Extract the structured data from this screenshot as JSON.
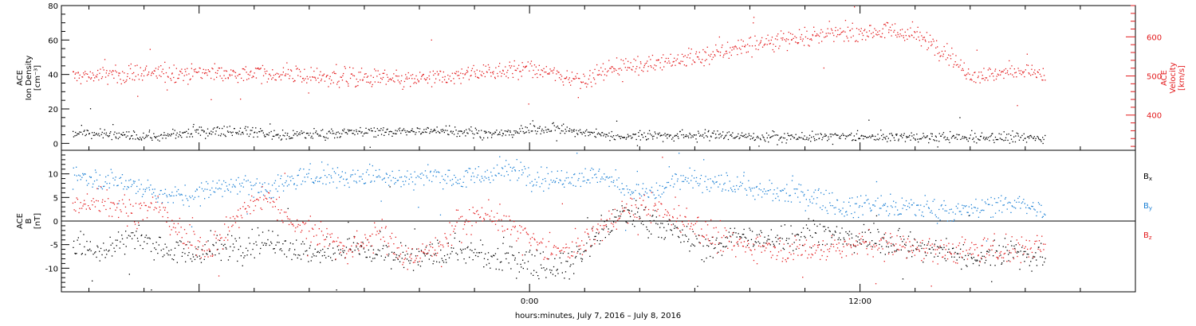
{
  "chart_data": [
    {
      "type": "scatter",
      "panel": "top",
      "left_axis_label": [
        "ACE",
        "Ion Density",
        "[cm⁻³]"
      ],
      "right_axis_label": [
        "ACE",
        "Velocity",
        "[km/s]"
      ],
      "left_ylim": [
        -4,
        80
      ],
      "left_yticks": [
        0,
        20,
        40,
        60,
        80
      ],
      "right_ylim": [
        310,
        680
      ],
      "right_yticks": [
        400,
        500,
        600
      ],
      "series": [
        {
          "name": "Ion Density",
          "axis": "left",
          "color": "#000000",
          "trend": [
            [
              -16.5,
              6
            ],
            [
              -15,
              5
            ],
            [
              -13.5,
              4
            ],
            [
              -12,
              7
            ],
            [
              -10.5,
              8
            ],
            [
              -9,
              5
            ],
            [
              -7.5,
              6
            ],
            [
              -6,
              7
            ],
            [
              -4.5,
              7
            ],
            [
              -3,
              8
            ],
            [
              -1.5,
              6
            ],
            [
              0,
              8
            ],
            [
              1,
              9
            ],
            [
              2,
              6
            ],
            [
              3,
              5
            ],
            [
              4,
              5
            ],
            [
              5,
              5
            ],
            [
              6,
              5
            ],
            [
              7,
              5
            ],
            [
              8,
              4
            ],
            [
              9,
              4
            ],
            [
              10,
              4
            ],
            [
              11,
              4
            ],
            [
              12,
              4
            ],
            [
              13,
              4
            ],
            [
              14,
              4
            ],
            [
              15,
              4
            ],
            [
              16,
              4
            ],
            [
              17,
              3.5
            ],
            [
              18.7,
              3.5
            ]
          ],
          "spread": 2.5
        },
        {
          "name": "Velocity",
          "axis": "right",
          "color": "#e31a1c",
          "trend": [
            [
              -16.5,
              500
            ],
            [
              -15,
              505
            ],
            [
              -13.5,
              508
            ],
            [
              -12,
              512
            ],
            [
              -10.5,
              505
            ],
            [
              -9,
              505
            ],
            [
              -7.5,
              500
            ],
            [
              -6,
              495
            ],
            [
              -4.5,
              490
            ],
            [
              -3,
              498
            ],
            [
              -1.5,
              515
            ],
            [
              0,
              520
            ],
            [
              1,
              505
            ],
            [
              2,
              490
            ],
            [
              3,
              525
            ],
            [
              4,
              530
            ],
            [
              5,
              540
            ],
            [
              6,
              545
            ],
            [
              7,
              565
            ],
            [
              8,
              580
            ],
            [
              9,
              595
            ],
            [
              10,
              600
            ],
            [
              11,
              610
            ],
            [
              12,
              615
            ],
            [
              13,
              618
            ],
            [
              14,
              605
            ],
            [
              15,
              570
            ],
            [
              16,
              500
            ],
            [
              17,
              508
            ],
            [
              18,
              518
            ],
            [
              18.7,
              500
            ]
          ],
          "spread": 20
        }
      ]
    },
    {
      "type": "scatter",
      "panel": "bottom",
      "left_axis_label": [
        "ACE",
        "B",
        "[nT]"
      ],
      "ylim": [
        -15,
        15
      ],
      "yticks": [
        -10,
        -5,
        0,
        5,
        10
      ],
      "zero_line": true,
      "series": [
        {
          "name": "Bx",
          "label_main": "B",
          "label_sub": "x",
          "color": "#000000",
          "trend": [
            [
              -16.5,
              -5
            ],
            [
              -15.5,
              -6
            ],
            [
              -14.5,
              -3
            ],
            [
              -13.5,
              -5
            ],
            [
              -12.5,
              -7
            ],
            [
              -11.5,
              -6
            ],
            [
              -10.5,
              -5
            ],
            [
              -9.5,
              -4
            ],
            [
              -8.5,
              -6
            ],
            [
              -7.5,
              -7
            ],
            [
              -6.5,
              -5
            ],
            [
              -5.5,
              -7
            ],
            [
              -4.5,
              -8
            ],
            [
              -3.5,
              -7
            ],
            [
              -2.5,
              -6
            ],
            [
              -1.5,
              -8
            ],
            [
              -0.5,
              -8
            ],
            [
              0.5,
              -9
            ],
            [
              1.5,
              -9
            ],
            [
              2.5,
              -2
            ],
            [
              3.5,
              2
            ],
            [
              4.5,
              0
            ],
            [
              5.5,
              -3
            ],
            [
              6.5,
              -6
            ],
            [
              7.5,
              -3
            ],
            [
              8.5,
              -4
            ],
            [
              9.5,
              -3
            ],
            [
              10.5,
              -2
            ],
            [
              11.5,
              -3
            ],
            [
              12.5,
              -4
            ],
            [
              13.5,
              -5
            ],
            [
              14.5,
              -6
            ],
            [
              15.5,
              -7
            ],
            [
              16.5,
              -7
            ],
            [
              17.5,
              -6
            ],
            [
              18.7,
              -8
            ]
          ],
          "spread": 2.5
        },
        {
          "name": "By",
          "label_main": "B",
          "label_sub": "y",
          "color": "#1a7fd4",
          "trend": [
            [
              -16.5,
              10
            ],
            [
              -15.5,
              9
            ],
            [
              -14.5,
              8
            ],
            [
              -13.5,
              6
            ],
            [
              -12.5,
              5
            ],
            [
              -11.5,
              7
            ],
            [
              -10.5,
              8
            ],
            [
              -9.5,
              7
            ],
            [
              -8.5,
              9
            ],
            [
              -7.5,
              10
            ],
            [
              -6.5,
              9
            ],
            [
              -5.5,
              10
            ],
            [
              -4.5,
              9
            ],
            [
              -3.5,
              10
            ],
            [
              -2.5,
              9
            ],
            [
              -1.5,
              10
            ],
            [
              -0.5,
              11
            ],
            [
              0.5,
              9
            ],
            [
              1.5,
              9
            ],
            [
              2.5,
              10
            ],
            [
              3.5,
              7
            ],
            [
              4.5,
              6
            ],
            [
              5.5,
              9
            ],
            [
              6.5,
              8
            ],
            [
              7.5,
              8
            ],
            [
              8.5,
              6
            ],
            [
              9.5,
              6
            ],
            [
              10.5,
              5
            ],
            [
              11.5,
              3
            ],
            [
              12.5,
              4
            ],
            [
              13.5,
              3
            ],
            [
              14.5,
              3
            ],
            [
              15.5,
              2
            ],
            [
              16.5,
              3
            ],
            [
              17.5,
              4
            ],
            [
              18.7,
              2
            ]
          ],
          "spread": 2
        },
        {
          "name": "Bz",
          "label_main": "B",
          "label_sub": "z",
          "color": "#e31a1c",
          "trend": [
            [
              -16.5,
              3
            ],
            [
              -15.5,
              5
            ],
            [
              -14.5,
              2
            ],
            [
              -13.5,
              4
            ],
            [
              -12.5,
              -4
            ],
            [
              -11.5,
              -6
            ],
            [
              -10.5,
              2
            ],
            [
              -9.5,
              5
            ],
            [
              -8.5,
              0
            ],
            [
              -7.5,
              -3
            ],
            [
              -6.5,
              -6
            ],
            [
              -5.5,
              -2
            ],
            [
              -4.5,
              -8
            ],
            [
              -3.5,
              -6
            ],
            [
              -2.5,
              0
            ],
            [
              -1.5,
              2
            ],
            [
              -0.5,
              -2
            ],
            [
              0.5,
              -6
            ],
            [
              1.5,
              -6
            ],
            [
              2.5,
              -2
            ],
            [
              3.5,
              3
            ],
            [
              4.5,
              3
            ],
            [
              5.5,
              1
            ],
            [
              6.5,
              -3
            ],
            [
              7.5,
              -5
            ],
            [
              8.5,
              -5
            ],
            [
              9.5,
              -6
            ],
            [
              10.5,
              -6
            ],
            [
              11.5,
              -5
            ],
            [
              12.5,
              -5
            ],
            [
              13.5,
              -5
            ],
            [
              14.5,
              -6
            ],
            [
              15.5,
              -6
            ],
            [
              16.5,
              -6
            ],
            [
              17.5,
              -6
            ],
            [
              18.7,
              -5
            ]
          ],
          "spread": 2.5
        }
      ]
    }
  ],
  "xaxis": {
    "title": "hours:minutes,  July  7, 2016 – July  8, 2016",
    "range_hours": [
      -17,
      22
    ],
    "tick_labels": [
      {
        "hour": 0,
        "label": "0:00"
      },
      {
        "hour": 12,
        "label": "12:00"
      }
    ],
    "minor_tick_step_hours": 2,
    "data_end_hour": 18.7
  }
}
